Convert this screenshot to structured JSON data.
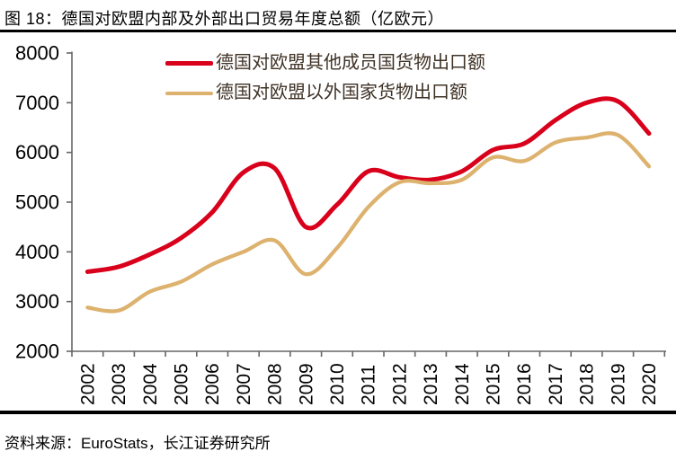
{
  "title": "图 18：德国对欧盟内部及外部出口贸易年度总额（亿欧元）",
  "source": "资料来源：EuroStats，长江证券研究所",
  "colors": {
    "series_red": "#D9001B",
    "series_tan": "#DDB26E",
    "axis": "#666666",
    "tick_label": "#000000",
    "legend_text": "#3F3226",
    "rule": "#000000",
    "background": "#FFFFFF"
  },
  "chart_data": {
    "type": "line",
    "title": "德国对欧盟内部及外部出口贸易年度总额（亿欧元）",
    "categories": [
      "2002",
      "2003",
      "2004",
      "2005",
      "2006",
      "2007",
      "2008",
      "2009",
      "2010",
      "2011",
      "2012",
      "2013",
      "2014",
      "2015",
      "2016",
      "2017",
      "2018",
      "2019",
      "2020"
    ],
    "series": [
      {
        "name": "德国对欧盟其他成员国货物出口额",
        "color": "#D9001B",
        "values": [
          3600,
          3700,
          3950,
          4280,
          4800,
          5600,
          5680,
          4500,
          4950,
          5620,
          5500,
          5450,
          5620,
          6050,
          6180,
          6650,
          7000,
          7030,
          6380
        ]
      },
      {
        "name": "德国对欧盟以外国家货物出口额",
        "color": "#DDB26E",
        "values": [
          2880,
          2820,
          3200,
          3400,
          3750,
          4000,
          4230,
          3550,
          4080,
          4900,
          5400,
          5380,
          5450,
          5900,
          5830,
          6200,
          6300,
          6350,
          5720
        ]
      }
    ],
    "xlabel": "",
    "ylabel": "",
    "ylim": [
      2000,
      8000
    ],
    "yticks": [
      2000,
      3000,
      4000,
      5000,
      6000,
      7000,
      8000
    ],
    "grid": false,
    "legend_position": "top-center",
    "x_tick_label_rotation": -90,
    "line_style": "smooth"
  }
}
